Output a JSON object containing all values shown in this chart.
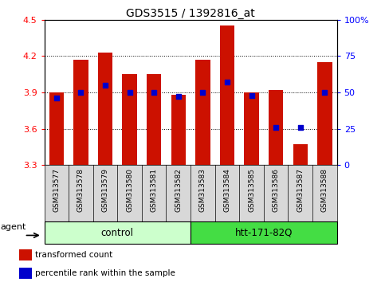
{
  "title": "GDS3515 / 1392816_at",
  "samples": [
    "GSM313577",
    "GSM313578",
    "GSM313579",
    "GSM313580",
    "GSM313581",
    "GSM313582",
    "GSM313583",
    "GSM313584",
    "GSM313585",
    "GSM313586",
    "GSM313587",
    "GSM313588"
  ],
  "transformed_count": [
    3.9,
    4.17,
    4.23,
    4.05,
    4.05,
    3.88,
    4.17,
    4.45,
    3.9,
    3.92,
    3.47,
    4.15
  ],
  "percentile_rank": [
    0.46,
    0.5,
    0.55,
    0.5,
    0.5,
    0.47,
    0.5,
    0.57,
    0.48,
    0.26,
    0.26,
    0.5
  ],
  "ymin": 3.3,
  "ymax": 4.5,
  "yticks": [
    3.3,
    3.6,
    3.9,
    4.2,
    4.5
  ],
  "bar_color": "#cc1100",
  "dot_color": "#0000cc",
  "groups": [
    {
      "label": "control",
      "start": 0,
      "end": 5,
      "color": "#ccffcc",
      "dark_color": "#44cc44"
    },
    {
      "label": "htt-171-82Q",
      "start": 6,
      "end": 11,
      "color": "#44dd44",
      "dark_color": "#22aa22"
    }
  ],
  "agent_label": "agent",
  "legend_bar_label": "transformed count",
  "legend_dot_label": "percentile rank within the sample",
  "right_yticks": [
    0,
    25,
    50,
    75,
    100
  ],
  "right_ytick_labels": [
    "0",
    "25",
    "50",
    "75",
    "100%"
  ],
  "bar_width": 0.6,
  "tick_bg_color": "#d8d8d8",
  "plot_bg_color": "#ffffff"
}
